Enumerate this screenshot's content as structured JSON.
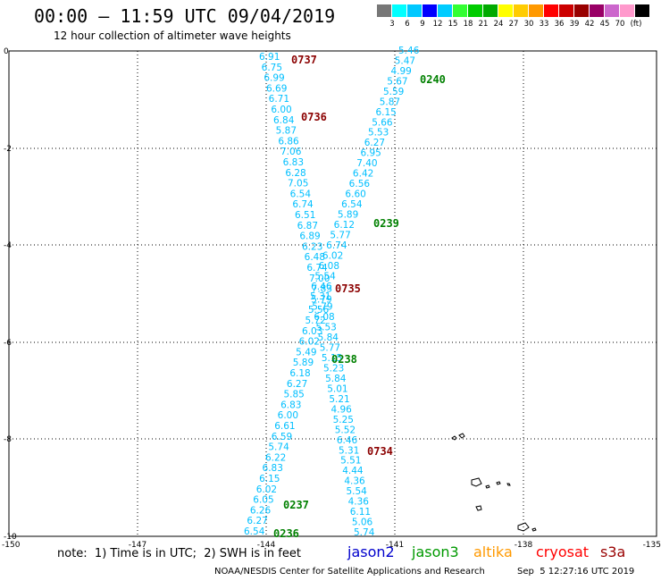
{
  "title": "00:00 – 11:59 UTC 09/04/2019",
  "subtitle": "12 hour collection of altimeter wave heights",
  "scale": {
    "unit": "(ft)",
    "colors": [
      "#777777",
      "#00ffff",
      "#00c8ff",
      "#0000ff",
      "#00ccff",
      "#33ff33",
      "#00cc00",
      "#00aa00",
      "#ffff00",
      "#ffcc00",
      "#ff9900",
      "#ff0000",
      "#cc0000",
      "#990000",
      "#990066",
      "#cc66cc",
      "#ff99cc",
      "#000000"
    ],
    "labels": [
      "3",
      "6",
      "9",
      "12",
      "15",
      "18",
      "21",
      "24",
      "27",
      "30",
      "33",
      "36",
      "39",
      "42",
      "45",
      "70"
    ]
  },
  "map": {
    "x_ticks": [
      "-150",
      "-147",
      "-144",
      "-141",
      "-138",
      "-135"
    ],
    "y_ticks": [
      "0",
      "-2",
      "-4",
      "-6",
      "-8",
      "-10"
    ],
    "value_color": "#00bfff",
    "track_a_values": [
      "6.91",
      "6.75",
      "6.99",
      "6.69",
      "6.71",
      "6.00",
      "6.84",
      "5.87",
      "6.86",
      "7.06",
      "6.83",
      "6.28",
      "7.05",
      "6.54",
      "6.74",
      "6.51",
      "6.87",
      "6.89",
      "6.23",
      "6.48",
      "6.74",
      "7.00",
      "7.83",
      "5.79",
      "5.56",
      "5.72",
      "6.03",
      "6.02",
      "5.49",
      "5.89",
      "6.18",
      "6.27",
      "5.85",
      "6.83",
      "6.00",
      "6.61",
      "6.59",
      "5.74",
      "6.22",
      "6.83",
      "6.15",
      "6.02",
      "6.05",
      "6.26",
      "6.27",
      "6.54"
    ],
    "track_b_values": [
      "5.46",
      "5.47",
      "4.99",
      "5.67",
      "5.59",
      "5.87",
      "6.15",
      "5.66",
      "5.53",
      "6.27",
      "6.95",
      "7.40",
      "6.42",
      "6.56",
      "6.60",
      "6.54",
      "5.89",
      "6.12",
      "5.77",
      "6.74",
      "6.02",
      "6.08",
      "5.54",
      "6.46",
      "5.31",
      "5.79",
      "6.08",
      "5.53",
      "5.84",
      "5.77",
      "5.15",
      "5.23",
      "5.84",
      "5.01",
      "5.21",
      "4.96",
      "5.25",
      "5.52",
      "6.46",
      "5.31",
      "5.51",
      "4.44",
      "4.36",
      "5.54",
      "4.36",
      "6.11",
      "5.06",
      "5.74"
    ],
    "time_labels": [
      {
        "text": "0737",
        "color": "#8b0000"
      },
      {
        "text": "0736",
        "color": "#8b0000"
      },
      {
        "text": "0735",
        "color": "#8b0000"
      },
      {
        "text": "0734",
        "color": "#8b0000"
      },
      {
        "text": "0240",
        "color": "#008000"
      },
      {
        "text": "0239",
        "color": "#008000"
      },
      {
        "text": "0238",
        "color": "#008000"
      },
      {
        "text": "0237",
        "color": "#008000"
      },
      {
        "text": "0236",
        "color": "#008000"
      }
    ]
  },
  "note": "note:  1) Time is in UTC;  2) SWH is in feet",
  "satellites": [
    {
      "name": "jason2",
      "color": "#0000cc"
    },
    {
      "name": "jason3",
      "color": "#009900"
    },
    {
      "name": "altika",
      "color": "#ff9900"
    },
    {
      "name": "cryosat",
      "color": "#ff0000"
    },
    {
      "name": "s3a",
      "color": "#990000"
    }
  ],
  "footer": {
    "left": "NOAA/NESDIS Center for Satellite Applications and Research",
    "right": "Sep  5 12:27:16 UTC 2019"
  }
}
